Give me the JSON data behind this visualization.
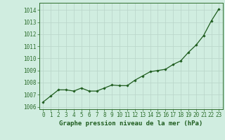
{
  "x": [
    0,
    1,
    2,
    3,
    4,
    5,
    6,
    7,
    8,
    9,
    10,
    11,
    12,
    13,
    14,
    15,
    16,
    17,
    18,
    19,
    20,
    21,
    22,
    23
  ],
  "y": [
    1006.4,
    1006.9,
    1007.4,
    1007.4,
    1007.3,
    1007.55,
    1007.3,
    1007.3,
    1007.55,
    1007.8,
    1007.75,
    1007.75,
    1008.2,
    1008.55,
    1008.9,
    1009.0,
    1009.1,
    1009.5,
    1009.8,
    1010.5,
    1011.1,
    1011.9,
    1013.1,
    1014.1
  ],
  "line_color": "#1e5c1e",
  "marker": "D",
  "marker_size": 1.8,
  "line_width": 0.9,
  "bg_color": "#d0ede0",
  "grid_color": "#b8d4c8",
  "axes_color": "#2d6e2d",
  "tick_label_color": "#1e5c1e",
  "ylabel_ticks": [
    1006,
    1007,
    1008,
    1009,
    1010,
    1011,
    1012,
    1013,
    1014
  ],
  "xlim": [
    -0.5,
    23.5
  ],
  "ylim": [
    1005.8,
    1014.6
  ],
  "xlabel": "Graphe pression niveau de la mer (hPa)",
  "tick_fontsize": 5.5,
  "xlabel_fontsize": 6.5
}
